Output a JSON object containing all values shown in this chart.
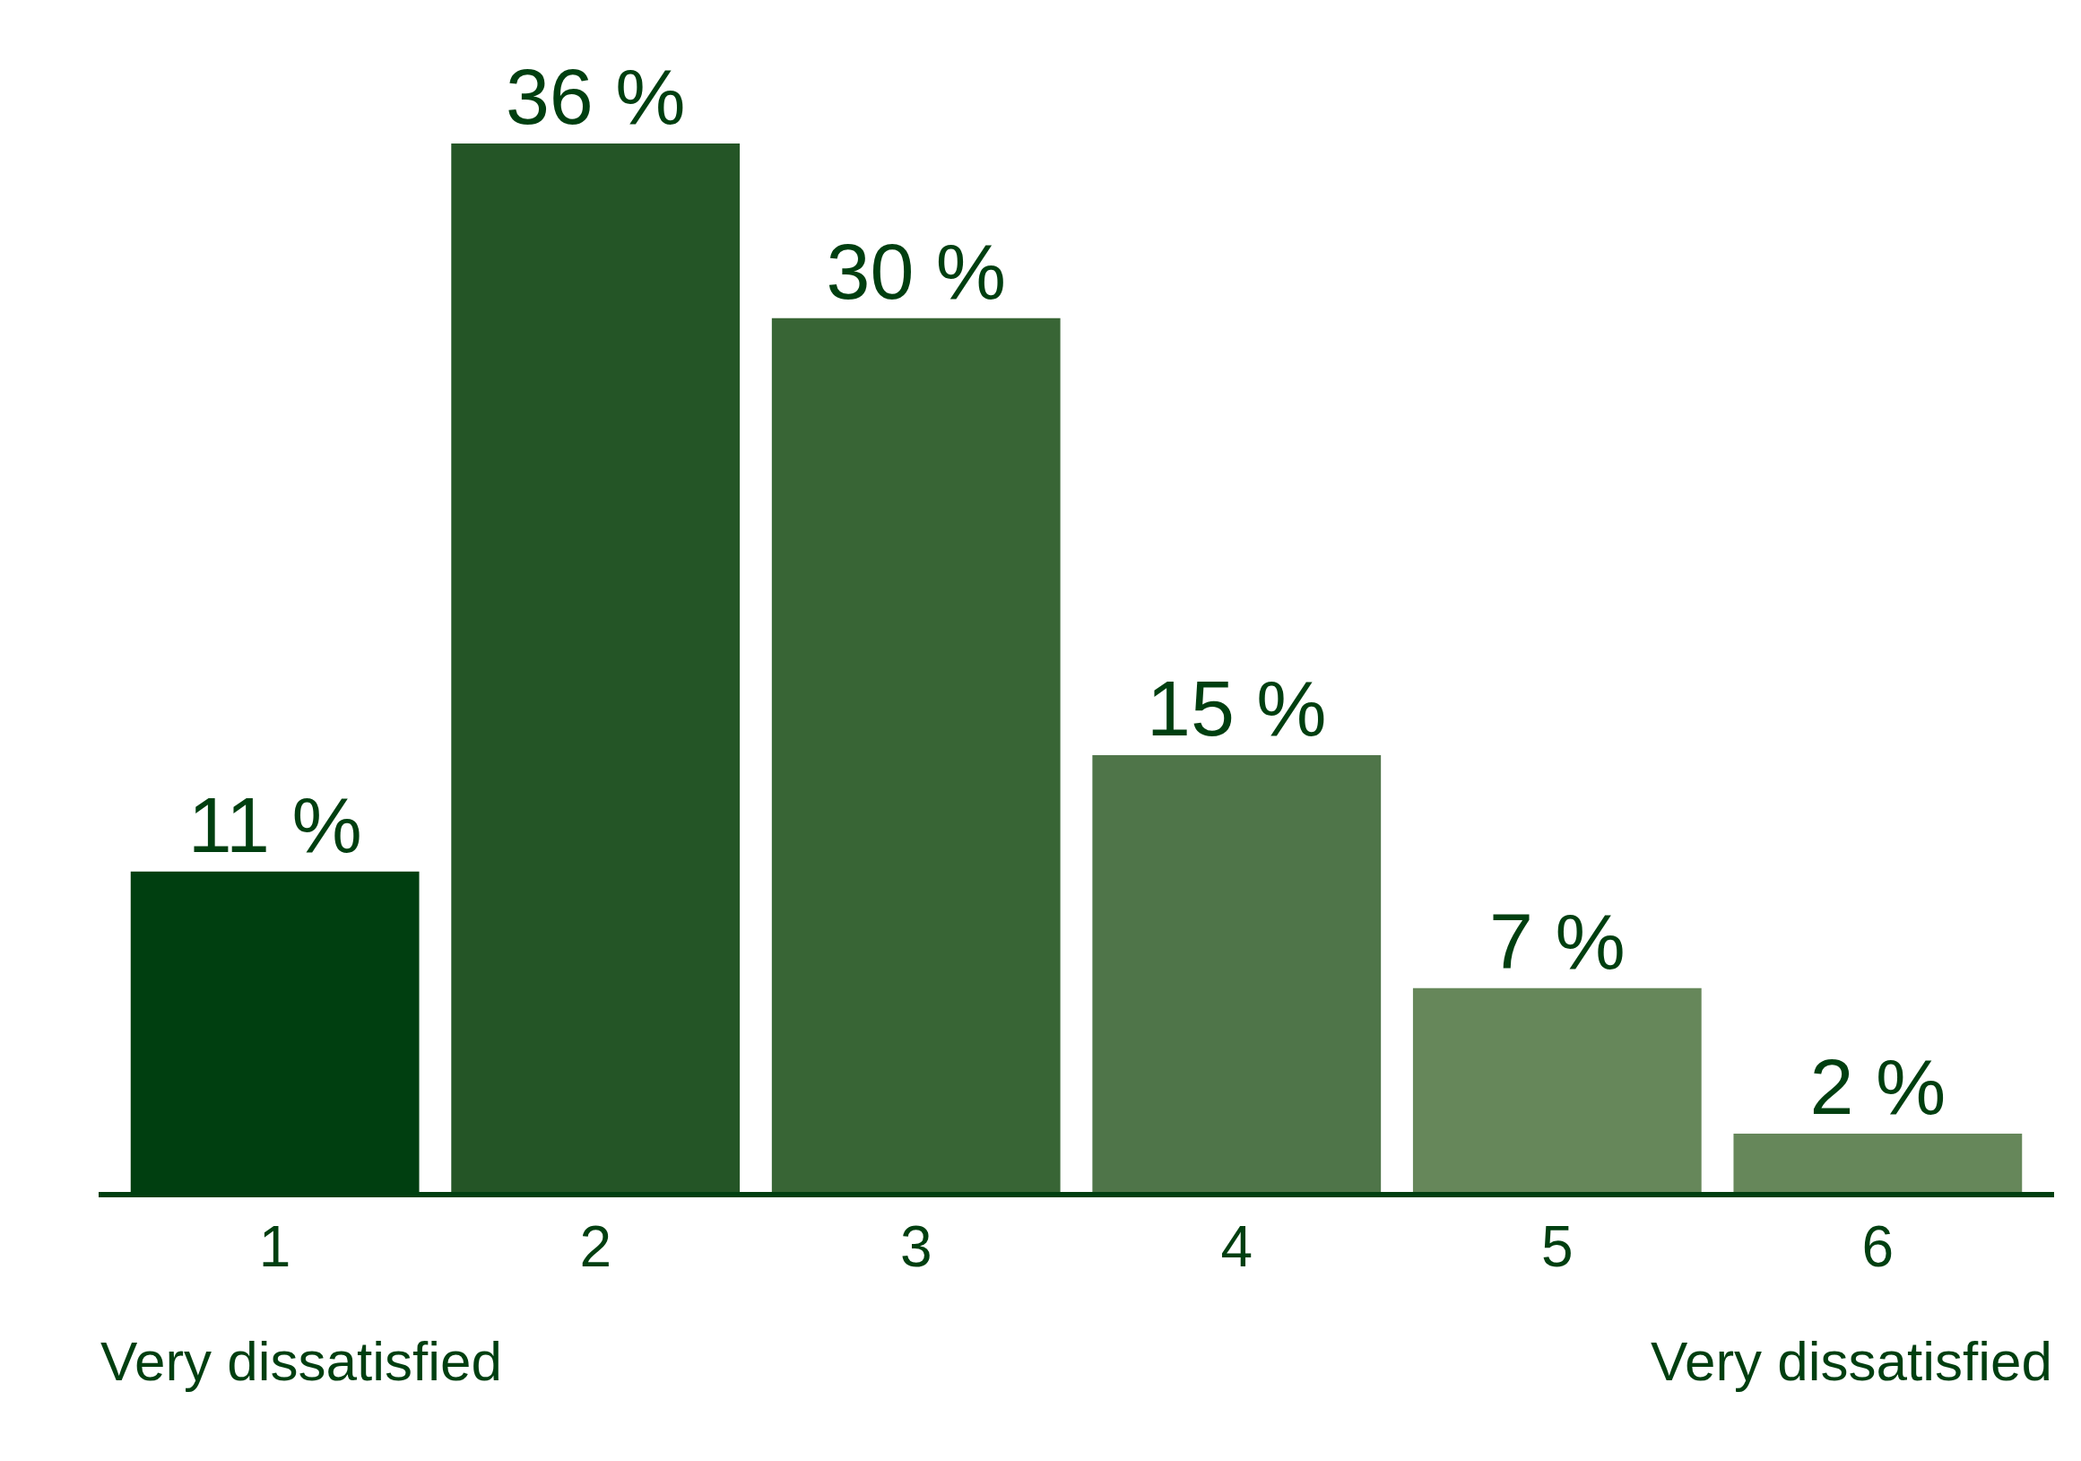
{
  "chart_data": {
    "type": "bar",
    "categories": [
      "1",
      "2",
      "3",
      "4",
      "5",
      "6"
    ],
    "values": [
      11,
      36,
      30,
      15,
      7,
      2
    ],
    "colors": [
      "#003f10",
      "#245526",
      "#386535",
      "#4f7549",
      "#66875a",
      "#66875a"
    ],
    "value_labels": [
      "11 %",
      "36 %",
      "30 %",
      "15 %",
      "7 %",
      "2 %"
    ],
    "annotations": [
      "Very dissatisfied",
      "Very dissatisfied"
    ]
  }
}
